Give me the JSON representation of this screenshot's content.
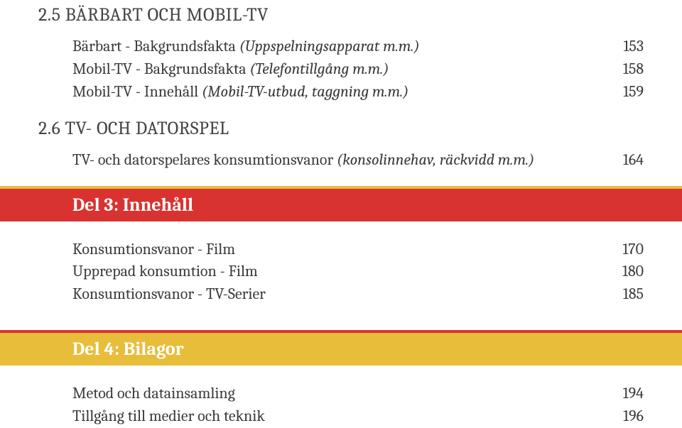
{
  "section25": {
    "heading": "2.5 BÄRBART OCH MOBIL-TV",
    "items": [
      {
        "label_main": "Bärbart - Bakgrundsfakta ",
        "label_italic": "(Uppspelningsapparat m.m.)",
        "page": "153"
      },
      {
        "label_main": "Mobil-TV - Bakgrundsfakta ",
        "label_italic": "(Telefontillgång m.m.)",
        "page": "158"
      },
      {
        "label_main": "Mobil-TV - Innehåll ",
        "label_italic": "(Mobil-TV-utbud, taggning m.m.)",
        "page": "159"
      }
    ]
  },
  "section26": {
    "heading": "2.6 TV- OCH DATORSPEL",
    "items": [
      {
        "label_main": "TV- och datorspelares konsumtionsvanor ",
        "label_italic": "(konsolinnehav, räckvidd m.m.)",
        "page": "164"
      }
    ]
  },
  "part3": {
    "title": "Del 3: Innehåll",
    "items": [
      {
        "label_main": "Konsumtionsvanor - Film",
        "label_italic": "",
        "page": "170"
      },
      {
        "label_main": "Upprepad konsumtion - Film",
        "label_italic": "",
        "page": "180"
      },
      {
        "label_main": "Konsumtionsvanor - TV-Serier",
        "label_italic": "",
        "page": "185"
      }
    ]
  },
  "part4": {
    "title": "Del 4: Bilagor",
    "items": [
      {
        "label_main": "Metod och datainsamling",
        "label_italic": "",
        "page": "194"
      },
      {
        "label_main": "Tillgång till medier och teknik",
        "label_italic": "",
        "page": "196"
      }
    ]
  }
}
